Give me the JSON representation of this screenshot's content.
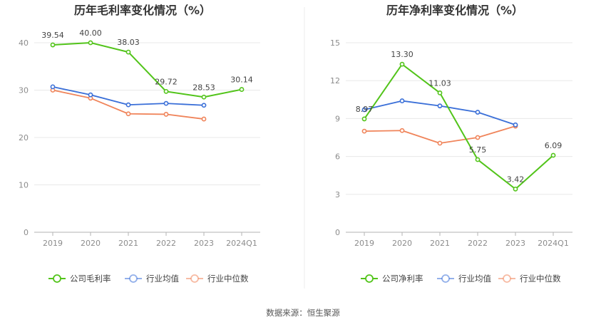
{
  "source_text": "数据来源：恒生聚源",
  "colors": {
    "company": "#52c41a",
    "average": "#3a6fd8",
    "median": "#f0845a",
    "grid": "#e8e8e8",
    "axis": "#b3b3b3"
  },
  "chart_data": [
    {
      "type": "line",
      "title": "历年毛利率变化情况（%）",
      "categories": [
        "2019",
        "2020",
        "2021",
        "2022",
        "2023",
        "2024Q1"
      ],
      "ylim": [
        0,
        40
      ],
      "yticks": [
        0,
        10,
        20,
        30,
        40
      ],
      "grid": true,
      "legend_position": "bottom",
      "series": [
        {
          "name": "公司毛利率",
          "key": "company",
          "values": [
            39.54,
            40.0,
            38.03,
            29.72,
            28.53,
            30.14
          ],
          "labels": [
            "39.54",
            "40.00",
            "38.03",
            "29.72",
            "28.53",
            "30.14"
          ]
        },
        {
          "name": "行业均值",
          "key": "average",
          "values": [
            30.7,
            29.0,
            26.9,
            27.2,
            26.8,
            null
          ]
        },
        {
          "name": "行业中位数",
          "key": "median",
          "values": [
            30.0,
            28.3,
            25.0,
            24.9,
            23.9,
            null
          ]
        }
      ]
    },
    {
      "type": "line",
      "title": "历年净利率变化情况（%）",
      "categories": [
        "2019",
        "2020",
        "2021",
        "2022",
        "2023",
        "2024Q1"
      ],
      "ylim": [
        0,
        15
      ],
      "yticks": [
        0,
        3,
        6,
        9,
        12,
        15
      ],
      "grid": true,
      "legend_position": "bottom",
      "series": [
        {
          "name": "公司净利率",
          "key": "company",
          "values": [
            8.97,
            13.3,
            11.03,
            5.75,
            3.42,
            6.09
          ],
          "labels": [
            "8.97",
            "13.30",
            "11.03",
            "5.75",
            "3.42",
            "6.09"
          ]
        },
        {
          "name": "行业均值",
          "key": "average",
          "values": [
            9.7,
            10.4,
            10.0,
            9.5,
            8.5,
            null
          ]
        },
        {
          "name": "行业中位数",
          "key": "median",
          "values": [
            8.0,
            8.05,
            7.05,
            7.5,
            8.4,
            null
          ]
        }
      ]
    }
  ]
}
